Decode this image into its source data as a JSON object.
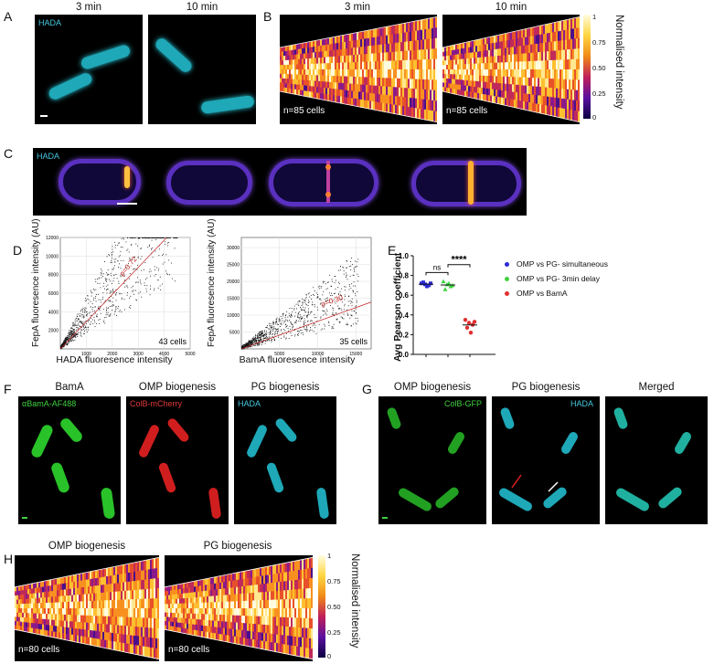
{
  "panels": {
    "A": {
      "letter": "A",
      "t1": "3 min",
      "t2": "10 min",
      "stain": "HADA"
    },
    "B": {
      "letter": "B",
      "t1": "3 min",
      "t2": "10 min",
      "n1": "n=85 cells",
      "n2": "n=85 cells",
      "cbar_label": "Normalised intensity",
      "ticks": [
        "1",
        "0.75",
        "0.50",
        "0.25",
        "0"
      ]
    },
    "C": {
      "letter": "C",
      "stain": "HADA"
    },
    "D": {
      "letter": "D",
      "left": {
        "ylabel": "FepA fluoresence intensity (AU)",
        "xlabel": "HADA fluoresence intensity",
        "rho": "ρ=0.72",
        "cells": "43 cells",
        "yticks": [
          "12000",
          "10000",
          "8000",
          "6000",
          "4000",
          "2000"
        ],
        "xticks": [
          "1000",
          "2000",
          "3000",
          "4000",
          "5000"
        ]
      },
      "right": {
        "ylabel": "FepA fluoresence intensity (AU)",
        "xlabel": "BamA fluoresence intensity",
        "rho": "ρ=0.30",
        "cells": "35 cells",
        "yticks": [
          "30000",
          "25000",
          "20000",
          "15000",
          "10000",
          "5000"
        ],
        "xticks": [
          "5000",
          "10000",
          "15000"
        ]
      }
    },
    "E": {
      "letter": "E",
      "ylabel": "Avg Pearson coefficient",
      "ns": "ns",
      "stars": "****",
      "yticks": [
        "1.0",
        "0.8",
        "0.6",
        "0.4",
        "0.2",
        "0.0"
      ],
      "legend": [
        {
          "label": "OMP vs PG- simultaneous",
          "color": "#2b2bd6"
        },
        {
          "label": "OMP vs PG- 3min delay",
          "color": "#3fd13f"
        },
        {
          "label": "OMP vs BamA",
          "color": "#e03030"
        }
      ]
    },
    "F": {
      "letter": "F",
      "t1": "BamA",
      "t2": "OMP biogenesis",
      "t3": "PG biogenesis",
      "s1": "αBamA-AF488",
      "s2": "ColB-mCherry",
      "s3": "HADA"
    },
    "G": {
      "letter": "G",
      "t1": "OMP biogenesis",
      "t2": "PG biogenesis",
      "t3": "Merged",
      "s1": "ColB-GFP",
      "s2": "HADA"
    },
    "H": {
      "letter": "H",
      "t1": "OMP biogenesis",
      "t2": "PG biogenesis",
      "n1": "n=80 cells",
      "n2": "n=80 cells",
      "cbar_label": "Normalised intensity",
      "ticks": [
        "1",
        "0.75",
        "0.50",
        "0.25",
        "0"
      ]
    }
  },
  "chart_data": [
    {
      "type": "scatter",
      "title": "",
      "xlabel": "HADA fluoresence intensity",
      "ylabel": "FepA fluoresence intensity (AU)",
      "xlim": [
        0,
        5000
      ],
      "ylim": [
        0,
        12000
      ],
      "annotation": "ρ=0.72",
      "note": "43 cells"
    },
    {
      "type": "scatter",
      "title": "",
      "xlabel": "BamA fluoresence intensity",
      "ylabel": "FepA fluoresence intensity (AU)",
      "xlim": [
        0,
        17000
      ],
      "ylim": [
        0,
        33000
      ],
      "annotation": "ρ=0.30",
      "note": "35 cells"
    },
    {
      "type": "scatter",
      "title": "",
      "ylabel": "Avg Pearson coefficient",
      "ylim": [
        0,
        1.0
      ],
      "series": [
        {
          "name": "OMP vs PG- simultaneous",
          "values": [
            0.72,
            0.71,
            0.7,
            0.73,
            0.69,
            0.72
          ]
        },
        {
          "name": "OMP vs PG- 3min delay",
          "values": [
            0.74,
            0.71,
            0.69,
            0.66,
            0.72,
            0.7
          ]
        },
        {
          "name": "OMP vs BamA",
          "values": [
            0.35,
            0.32,
            0.3,
            0.27,
            0.22,
            0.33
          ]
        }
      ]
    }
  ]
}
